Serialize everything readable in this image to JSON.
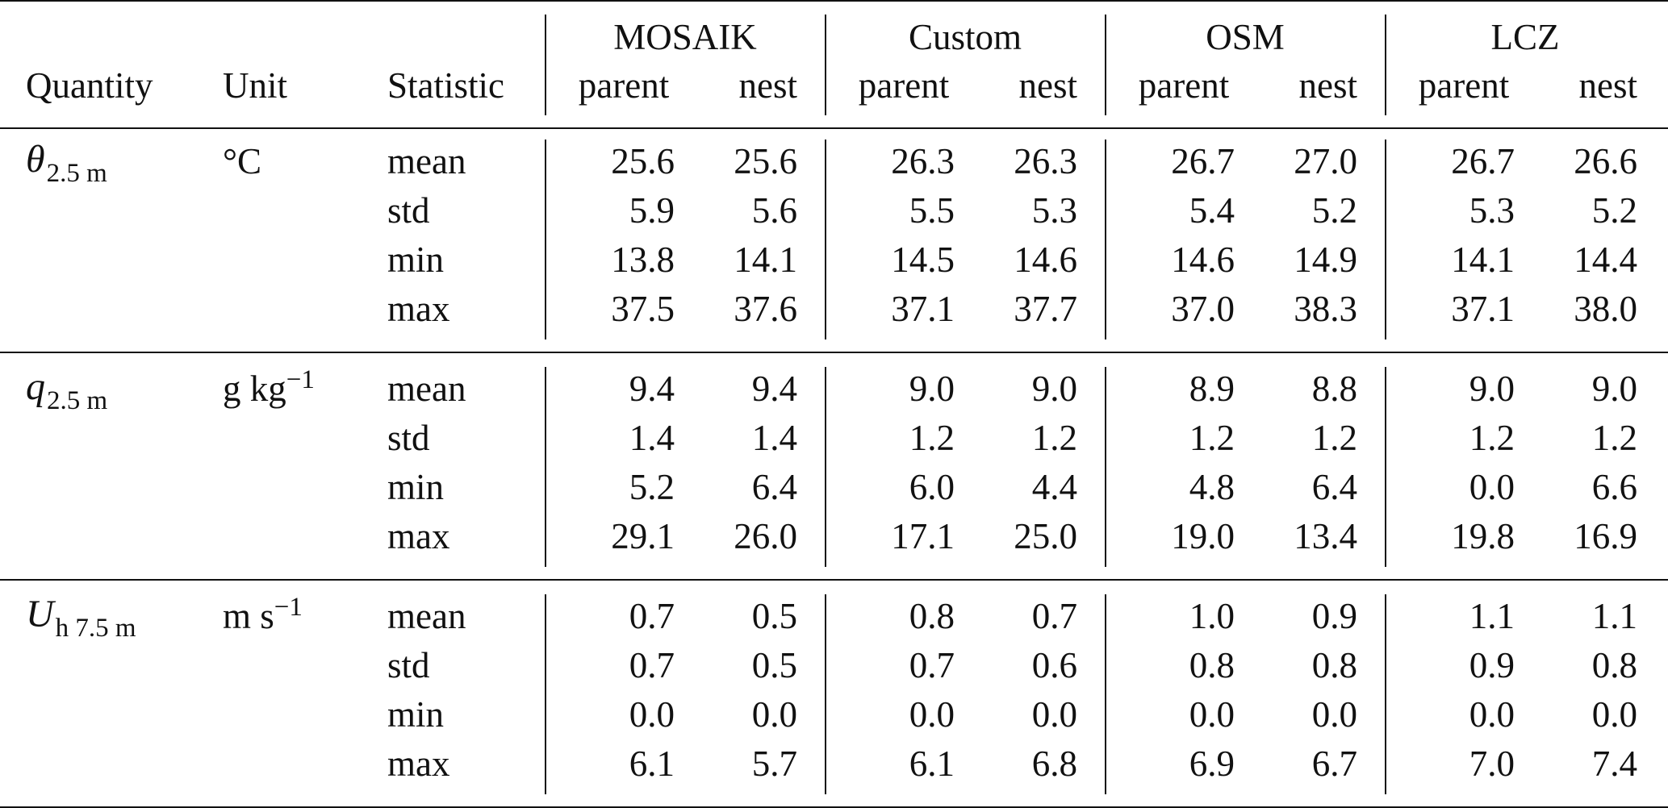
{
  "header": {
    "quantity": "Quantity",
    "unit": "Unit",
    "statistic": "Statistic",
    "groups": [
      "MOSAIK",
      "Custom",
      "OSM",
      "LCZ"
    ],
    "sub_parent": "parent",
    "sub_nest": "nest"
  },
  "blocks": [
    {
      "symbol": "θ",
      "symbol_sub": "2.5 m",
      "unit_base": "°C",
      "unit_sup": "",
      "rows": [
        {
          "stat": "mean",
          "values": [
            "25.6",
            "25.6",
            "26.3",
            "26.3",
            "26.7",
            "27.0",
            "26.7",
            "26.6"
          ]
        },
        {
          "stat": "std",
          "values": [
            "5.9",
            "5.6",
            "5.5",
            "5.3",
            "5.4",
            "5.2",
            "5.3",
            "5.2"
          ]
        },
        {
          "stat": "min",
          "values": [
            "13.8",
            "14.1",
            "14.5",
            "14.6",
            "14.6",
            "14.9",
            "14.1",
            "14.4"
          ]
        },
        {
          "stat": "max",
          "values": [
            "37.5",
            "37.6",
            "37.1",
            "37.7",
            "37.0",
            "38.3",
            "37.1",
            "38.0"
          ]
        }
      ]
    },
    {
      "symbol": "q",
      "symbol_sub": "2.5 m",
      "unit_base": "g kg",
      "unit_sup": "−1",
      "rows": [
        {
          "stat": "mean",
          "values": [
            "9.4",
            "9.4",
            "9.0",
            "9.0",
            "8.9",
            "8.8",
            "9.0",
            "9.0"
          ]
        },
        {
          "stat": "std",
          "values": [
            "1.4",
            "1.4",
            "1.2",
            "1.2",
            "1.2",
            "1.2",
            "1.2",
            "1.2"
          ]
        },
        {
          "stat": "min",
          "values": [
            "5.2",
            "6.4",
            "6.0",
            "4.4",
            "4.8",
            "6.4",
            "0.0",
            "6.6"
          ]
        },
        {
          "stat": "max",
          "values": [
            "29.1",
            "26.0",
            "17.1",
            "25.0",
            "19.0",
            "13.4",
            "19.8",
            "16.9"
          ]
        }
      ]
    },
    {
      "symbol": "U",
      "symbol_sub": "h 7.5 m",
      "unit_base": "m s",
      "unit_sup": "−1",
      "rows": [
        {
          "stat": "mean",
          "values": [
            "0.7",
            "0.5",
            "0.8",
            "0.7",
            "1.0",
            "0.9",
            "1.1",
            "1.1"
          ]
        },
        {
          "stat": "std",
          "values": [
            "0.7",
            "0.5",
            "0.7",
            "0.6",
            "0.8",
            "0.8",
            "0.9",
            "0.8"
          ]
        },
        {
          "stat": "min",
          "values": [
            "0.0",
            "0.0",
            "0.0",
            "0.0",
            "0.0",
            "0.0",
            "0.0",
            "0.0"
          ]
        },
        {
          "stat": "max",
          "values": [
            "6.1",
            "5.7",
            "6.1",
            "6.8",
            "6.9",
            "6.7",
            "7.0",
            "7.4"
          ]
        }
      ]
    }
  ]
}
